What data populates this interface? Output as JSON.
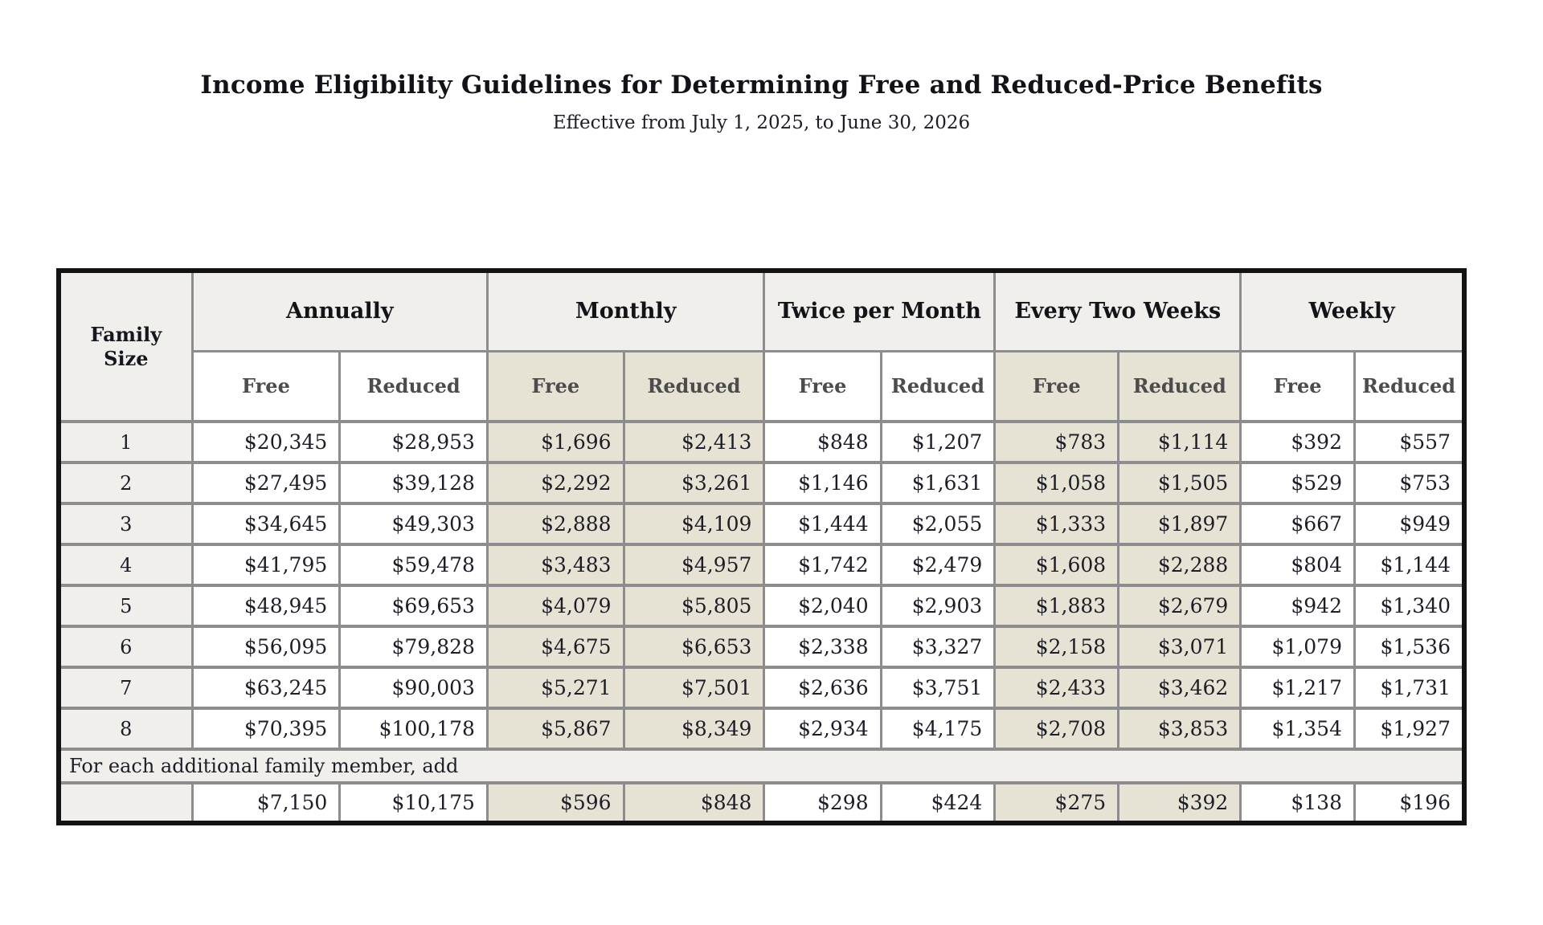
{
  "page": {
    "title": "Income Eligibility Guidelines for Determining Free and Reduced-Price Benefits",
    "subtitle": "Effective from July 1, 2025, to June 30, 2026"
  },
  "table": {
    "family_size_header": "Family Size",
    "sub_headers": {
      "free": "Free",
      "reduced": "Reduced"
    },
    "groups": [
      {
        "label": "Annually"
      },
      {
        "label": "Monthly"
      },
      {
        "label": "Twice per Month"
      },
      {
        "label": "Every Two Weeks"
      },
      {
        "label": "Weekly"
      }
    ],
    "column_order": [
      "annually_free",
      "annually_reduced",
      "monthly_free",
      "monthly_reduced",
      "twice_per_month_free",
      "twice_per_month_reduced",
      "every_two_weeks_free",
      "every_two_weeks_reduced",
      "weekly_free",
      "weekly_reduced"
    ],
    "rows": [
      {
        "family_size": "1",
        "values": [
          "$20,345",
          "$28,953",
          "$1,696",
          "$2,413",
          "$848",
          "$1,207",
          "$783",
          "$1,114",
          "$392",
          "$557"
        ]
      },
      {
        "family_size": "2",
        "values": [
          "$27,495",
          "$39,128",
          "$2,292",
          "$3,261",
          "$1,146",
          "$1,631",
          "$1,058",
          "$1,505",
          "$529",
          "$753"
        ]
      },
      {
        "family_size": "3",
        "values": [
          "$34,645",
          "$49,303",
          "$2,888",
          "$4,109",
          "$1,444",
          "$2,055",
          "$1,333",
          "$1,897",
          "$667",
          "$949"
        ]
      },
      {
        "family_size": "4",
        "values": [
          "$41,795",
          "$59,478",
          "$3,483",
          "$4,957",
          "$1,742",
          "$2,479",
          "$1,608",
          "$2,288",
          "$804",
          "$1,144"
        ]
      },
      {
        "family_size": "5",
        "values": [
          "$48,945",
          "$69,653",
          "$4,079",
          "$5,805",
          "$2,040",
          "$2,903",
          "$1,883",
          "$2,679",
          "$942",
          "$1,340"
        ]
      },
      {
        "family_size": "6",
        "values": [
          "$56,095",
          "$79,828",
          "$4,675",
          "$6,653",
          "$2,338",
          "$3,327",
          "$2,158",
          "$3,071",
          "$1,079",
          "$1,536"
        ]
      },
      {
        "family_size": "7",
        "values": [
          "$63,245",
          "$90,003",
          "$5,271",
          "$7,501",
          "$2,636",
          "$3,751",
          "$2,433",
          "$3,462",
          "$1,217",
          "$1,731"
        ]
      },
      {
        "family_size": "8",
        "values": [
          "$70,395",
          "$100,178",
          "$5,867",
          "$8,349",
          "$2,934",
          "$4,175",
          "$2,708",
          "$3,853",
          "$1,354",
          "$1,927"
        ]
      }
    ],
    "additional_member_label": "For each additional family member, add",
    "additional_member_row": {
      "family_size": "",
      "values": [
        "$7,150",
        "$10,175",
        "$596",
        "$848",
        "$298",
        "$424",
        "$275",
        "$392",
        "$138",
        "$196"
      ]
    }
  },
  "colors": {
    "header_gray": "#f0efec",
    "band_beige": "#e7e3d4",
    "inner_border": "#8d8d8d",
    "outer_border": "#131313",
    "text_dark": "#1d1d27",
    "subheader_text": "#4c4c4c"
  }
}
